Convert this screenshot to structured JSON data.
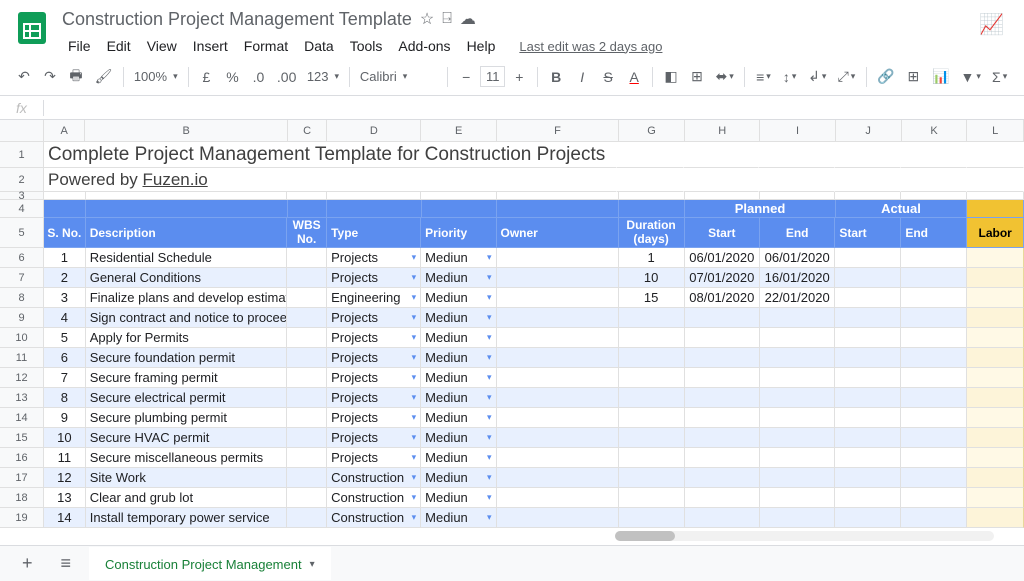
{
  "doc_title": "Construction Project Management Template",
  "last_edit": "Last edit was 2 days ago",
  "menus": [
    "File",
    "Edit",
    "View",
    "Insert",
    "Format",
    "Data",
    "Tools",
    "Add-ons",
    "Help"
  ],
  "toolbar": {
    "zoom": "100%",
    "currency": "£",
    "font": "Calibri",
    "size": "11"
  },
  "sheet_tab": "Construction Project Management",
  "title1": "Complete Project Management Template for Construction Projects",
  "title2_prefix": "Powered by ",
  "title2_link": "Fuzen.io",
  "columns": [
    "A",
    "B",
    "C",
    "D",
    "E",
    "F",
    "G",
    "H",
    "I",
    "J",
    "K",
    "L"
  ],
  "col_widths": {
    "A": 44,
    "B": 215,
    "C": 42,
    "D": 100,
    "E": 80,
    "F": 130,
    "G": 70,
    "H": 80,
    "I": 80,
    "J": 70,
    "K": 70,
    "L": 60
  },
  "headers_top": {
    "planned": "Planned",
    "actual": "Actual"
  },
  "headers": {
    "sno": "S. No.",
    "desc": "Description",
    "wbs": "WBS No.",
    "type": "Type",
    "priority": "Priority",
    "owner": "Owner",
    "duration": "Duration (days)",
    "start": "Start",
    "end": "End",
    "astart": "Start",
    "aend": "End",
    "labor": "Labor"
  },
  "rows": [
    {
      "n": 1,
      "desc": "Residential Schedule",
      "type": "Projects",
      "pri": "Mediun",
      "dur": "1",
      "s": "06/01/2020",
      "e": "06/01/2020"
    },
    {
      "n": 2,
      "desc": "General Conditions",
      "type": "Projects",
      "pri": "Mediun",
      "dur": "10",
      "s": "07/01/2020",
      "e": "16/01/2020"
    },
    {
      "n": 3,
      "desc": "Finalize plans and develop estimate with",
      "type": "Engineering",
      "pri": "Mediun",
      "dur": "15",
      "s": "08/01/2020",
      "e": "22/01/2020"
    },
    {
      "n": 4,
      "desc": "Sign contract and notice to proceed",
      "type": "Projects",
      "pri": "Mediun"
    },
    {
      "n": 5,
      "desc": "Apply for Permits",
      "type": "Projects",
      "pri": "Mediun"
    },
    {
      "n": 6,
      "desc": "Secure foundation permit",
      "type": "Projects",
      "pri": "Mediun"
    },
    {
      "n": 7,
      "desc": "Secure framing permit",
      "type": "Projects",
      "pri": "Mediun"
    },
    {
      "n": 8,
      "desc": "Secure electrical permit",
      "type": "Projects",
      "pri": "Mediun"
    },
    {
      "n": 9,
      "desc": "Secure plumbing permit",
      "type": "Projects",
      "pri": "Mediun"
    },
    {
      "n": 10,
      "desc": "Secure HVAC permit",
      "type": "Projects",
      "pri": "Mediun"
    },
    {
      "n": 11,
      "desc": "Secure miscellaneous permits",
      "type": "Projects",
      "pri": "Mediun"
    },
    {
      "n": 12,
      "desc": "Site Work",
      "type": "Construction",
      "pri": "Mediun"
    },
    {
      "n": 13,
      "desc": "Clear and grub lot",
      "type": "Construction",
      "pri": "Mediun"
    },
    {
      "n": 14,
      "desc": "Install temporary power service",
      "type": "Construction",
      "pri": "Mediun"
    }
  ],
  "colors": {
    "header_bg": "#5b8def",
    "even_bg": "#e8f0fe",
    "labor_bg": "#f1c232",
    "labor_even": "#fdf4d9"
  }
}
